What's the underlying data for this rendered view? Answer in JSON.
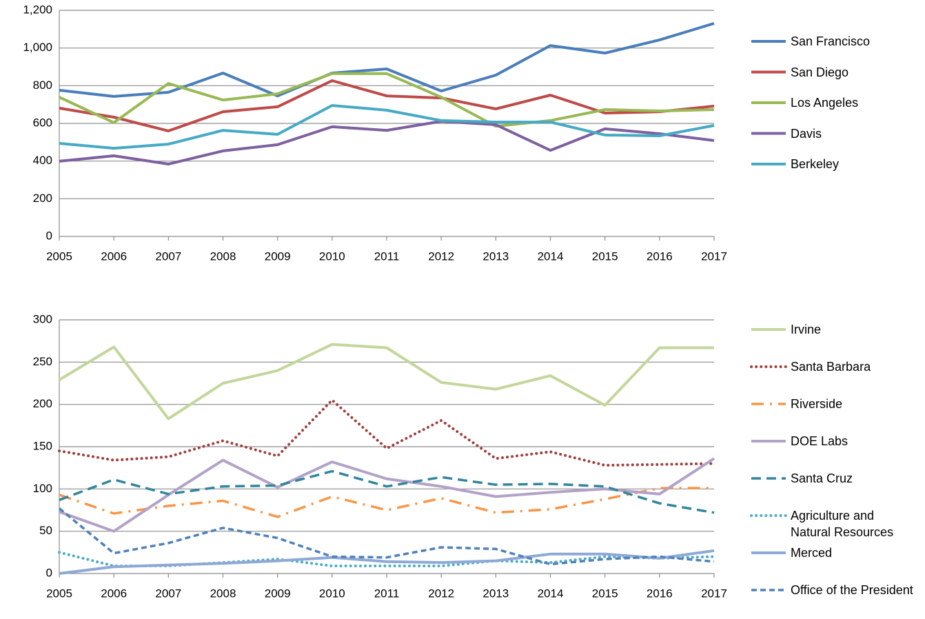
{
  "chart_data": [
    {
      "type": "line",
      "categories": [
        "2005",
        "2006",
        "2007",
        "2008",
        "2009",
        "2010",
        "2011",
        "2012",
        "2013",
        "2014",
        "2015",
        "2016",
        "2017"
      ],
      "ylim": [
        0,
        1200
      ],
      "yticks": [
        0,
        200,
        400,
        600,
        800,
        {
          "value": 1000,
          "label": "1,000"
        },
        {
          "value": 1200,
          "label": "1,200"
        }
      ],
      "grid": true,
      "legend": "right",
      "series": [
        {
          "name": "San Francisco",
          "color": "#4a7ebb",
          "style": "solid",
          "values": [
            776,
            743,
            765,
            867,
            746,
            867,
            889,
            772,
            856,
            1013,
            973,
            1043,
            1131
          ]
        },
        {
          "name": "San Diego",
          "color": "#be4b48",
          "style": "solid",
          "values": [
            681,
            633,
            560,
            662,
            688,
            827,
            746,
            735,
            677,
            750,
            655,
            662,
            692
          ]
        },
        {
          "name": "Los Angeles",
          "color": "#98b954",
          "style": "solid",
          "values": [
            739,
            604,
            812,
            724,
            757,
            864,
            864,
            739,
            585,
            615,
            673,
            666,
            673
          ]
        },
        {
          "name": "Davis",
          "color": "#7d60a0",
          "style": "solid",
          "values": [
            399,
            428,
            384,
            454,
            487,
            582,
            563,
            611,
            593,
            457,
            571,
            545,
            509
          ]
        },
        {
          "name": "Berkeley",
          "color": "#46aac5",
          "style": "solid",
          "values": [
            494,
            468,
            490,
            563,
            542,
            695,
            670,
            615,
            607,
            607,
            538,
            534,
            589
          ]
        }
      ]
    },
    {
      "type": "line",
      "categories": [
        "2005",
        "2006",
        "2007",
        "2008",
        "2009",
        "2010",
        "2011",
        "2012",
        "2013",
        "2014",
        "2015",
        "2016",
        "2017"
      ],
      "ylim": [
        0,
        300
      ],
      "yticks": [
        0,
        50,
        100,
        150,
        200,
        250,
        300
      ],
      "grid": true,
      "legend": "right",
      "series": [
        {
          "name": "Irvine",
          "color": "#c3d69b",
          "style": "solid",
          "values": [
            229,
            268,
            183,
            225,
            240,
            271,
            267,
            226,
            218,
            234,
            199,
            267,
            267
          ]
        },
        {
          "name": "Santa Barbara",
          "color": "#a0403d",
          "style": "dotted",
          "values": [
            145,
            134,
            138,
            157,
            139,
            205,
            148,
            181,
            136,
            144,
            128,
            129,
            130
          ]
        },
        {
          "name": "Riverside",
          "color": "#f79646",
          "style": "dash-dot",
          "values": [
            93,
            71,
            80,
            86,
            67,
            91,
            75,
            89,
            72,
            76,
            88,
            101,
            101
          ]
        },
        {
          "name": "DOE Labs",
          "color": "#b3a2c7",
          "style": "solid",
          "values": [
            73,
            50,
            93,
            134,
            102,
            132,
            112,
            103,
            91,
            96,
            100,
            94,
            136
          ]
        },
        {
          "name": "Santa Cruz",
          "color": "#31859c",
          "style": "dashed",
          "values": [
            87,
            111,
            94,
            103,
            104,
            121,
            103,
            114,
            105,
            106,
            103,
            83,
            72
          ]
        },
        {
          "name": "Agriculture and Natural Resources",
          "color": "#4bacc6",
          "style": "dotted",
          "values": [
            25,
            9,
            9,
            13,
            17,
            9,
            9,
            9,
            15,
            13,
            20,
            18,
            20
          ]
        },
        {
          "name": "Merced",
          "color": "#8ea9d6",
          "style": "solid",
          "values": [
            0,
            8,
            10,
            12,
            15,
            19,
            14,
            13,
            15,
            23,
            23,
            18,
            27
          ]
        },
        {
          "name": "Office of the President",
          "color": "#4f81bd",
          "style": "short-dash",
          "values": [
            77,
            24,
            36,
            54,
            42,
            20,
            19,
            31,
            29,
            11,
            17,
            20,
            14
          ]
        }
      ]
    }
  ]
}
